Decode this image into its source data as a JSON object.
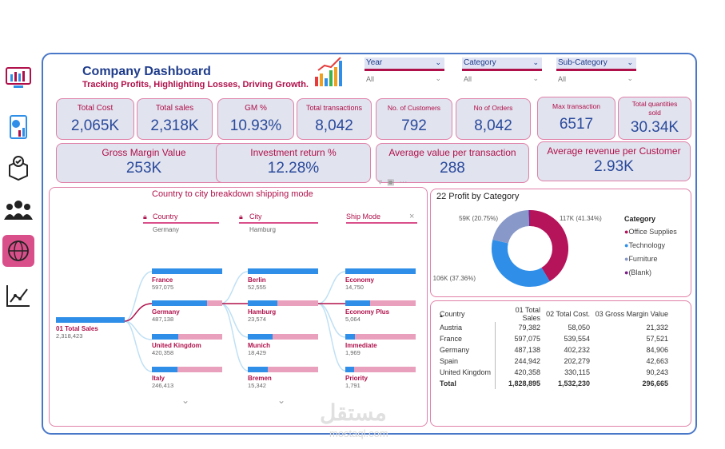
{
  "header": {
    "title": "Company Dashboard",
    "subtitle": "Tracking Profits, Highlighting Losses, Driving Growth."
  },
  "slicers": [
    {
      "label": "Year",
      "value": "All"
    },
    {
      "label": "Category",
      "value": "All"
    },
    {
      "label": "Sub-Category",
      "value": "All"
    }
  ],
  "kpis": [
    {
      "label": "Total Cost",
      "value": "2,065K"
    },
    {
      "label": "Total sales",
      "value": "2,318K"
    },
    {
      "label": "GM %",
      "value": "10.93%"
    },
    {
      "label": "Total transactions",
      "value": "8,042"
    },
    {
      "label": "No. of Customers",
      "value": "792"
    },
    {
      "label": "No of Orders",
      "value": "8,042"
    },
    {
      "label": "Max transaction",
      "value": "6517"
    },
    {
      "label": "Total quantities sold",
      "value": "30.34K"
    }
  ],
  "kpis2": [
    {
      "label": "Gross Margin Value",
      "value": "253K"
    },
    {
      "label": "Investment return %",
      "value": "12.28%"
    },
    {
      "label": "Average value per transaction",
      "value": "288"
    },
    {
      "label": "Average revenue per Customer",
      "value": "2.93K"
    }
  ],
  "tree": {
    "title": "Country to city breakdown shipping mode",
    "root": {
      "label": "01 Total Sales",
      "value": "2,318,423"
    },
    "columns": [
      {
        "label": "Country",
        "sub": "Germany"
      },
      {
        "label": "City",
        "sub": "Hamburg"
      },
      {
        "label": "Ship Mode",
        "sub": ""
      }
    ],
    "countries": [
      {
        "label": "France",
        "value": "597,075",
        "fill": 1.0
      },
      {
        "label": "Germany",
        "value": "487,138",
        "fill": 0.78
      },
      {
        "label": "United Kingdom",
        "value": "420,358",
        "fill": 0.38
      },
      {
        "label": "Italy",
        "value": "246,413",
        "fill": 0.36
      }
    ],
    "cities": [
      {
        "label": "Berlin",
        "value": "52,555",
        "fill": 1.0
      },
      {
        "label": "Hamburg",
        "value": "23,574",
        "fill": 0.42
      },
      {
        "label": "Munich",
        "value": "18,429",
        "fill": 0.35
      },
      {
        "label": "Bremen",
        "value": "15,342",
        "fill": 0.28
      }
    ],
    "shipmodes": [
      {
        "label": "Economy",
        "value": "14,750",
        "fill": 1.0
      },
      {
        "label": "Economy Plus",
        "value": "5,064",
        "fill": 0.35
      },
      {
        "label": "Immediate",
        "value": "1,969",
        "fill": 0.14
      },
      {
        "label": "Priority",
        "value": "1,791",
        "fill": 0.12
      }
    ]
  },
  "pie": {
    "title": "22 Profit by Category",
    "legend_title": "Category",
    "slices": [
      {
        "name": "Office Supplies",
        "value": 41.34,
        "label": "117K (41.34%)",
        "color": "#b5135a"
      },
      {
        "name": "Technology",
        "value": 37.36,
        "label": "106K (37.36%)",
        "color": "#2f8fe8"
      },
      {
        "name": "Furniture",
        "value": 20.75,
        "label": "59K (20.75%)",
        "color": "#8898c8"
      },
      {
        "name": "(Blank)",
        "value": 0.55,
        "label": "",
        "color": "#7b1f8a"
      }
    ]
  },
  "table": {
    "headers": [
      "Country",
      "01 Total Sales",
      "02 Total Cost.",
      "03 Gross Margin Value"
    ],
    "rows": [
      [
        "Austria",
        "79,382",
        "58,050",
        "21,332"
      ],
      [
        "France",
        "597,075",
        "539,554",
        "57,521"
      ],
      [
        "Germany",
        "487,138",
        "402,232",
        "84,906"
      ],
      [
        "Spain",
        "244,942",
        "202,279",
        "42,663"
      ],
      [
        "United Kingdom",
        "420,358",
        "330,115",
        "90,243"
      ]
    ],
    "total": [
      "Total",
      "1,828,895",
      "1,532,230",
      "296,665"
    ]
  },
  "watermark": {
    "arabic": "مستقل",
    "latin": "mostaql.com"
  }
}
